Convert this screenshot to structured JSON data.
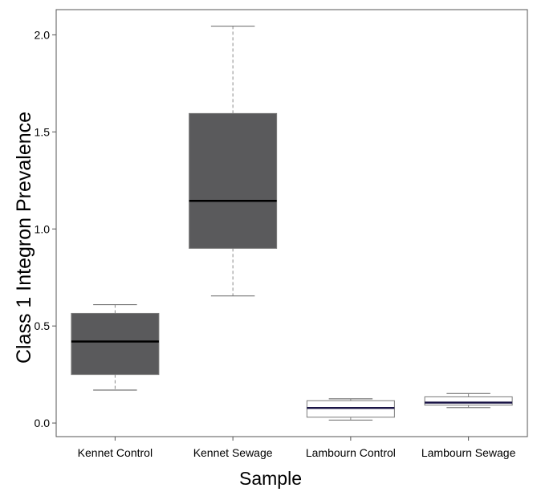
{
  "chart_data": {
    "type": "boxplot",
    "title": "",
    "xlabel": "Sample",
    "ylabel": "Class 1 Integron Prevalence",
    "ylim": [
      -0.07,
      2.13
    ],
    "yticks": [
      0.0,
      0.5,
      1.0,
      1.5,
      2.0
    ],
    "ytick_labels": [
      "0.0",
      "0.5",
      "1.0",
      "1.5",
      "2.0"
    ],
    "grid": false,
    "categories": [
      "Kennet Control",
      "Kennet Sewage",
      "Lambourn Control",
      "Lambourn Sewage"
    ],
    "boxes": [
      {
        "min": 0.17,
        "q1": 0.25,
        "median": 0.42,
        "q3": 0.565,
        "max": 0.61,
        "fill": "#5a5a5c",
        "median_color": "#000000"
      },
      {
        "min": 0.655,
        "q1": 0.9,
        "median": 1.145,
        "q3": 1.595,
        "max": 2.045,
        "fill": "#5a5a5c",
        "median_color": "#000000"
      },
      {
        "min": 0.015,
        "q1": 0.03,
        "median": 0.078,
        "q3": 0.115,
        "max": 0.125,
        "fill": "#ffffff",
        "median_color": "#1a1446"
      },
      {
        "min": 0.08,
        "q1": 0.092,
        "median": 0.105,
        "q3": 0.135,
        "max": 0.152,
        "fill": "#ffffff",
        "median_color": "#1a1446"
      }
    ]
  }
}
